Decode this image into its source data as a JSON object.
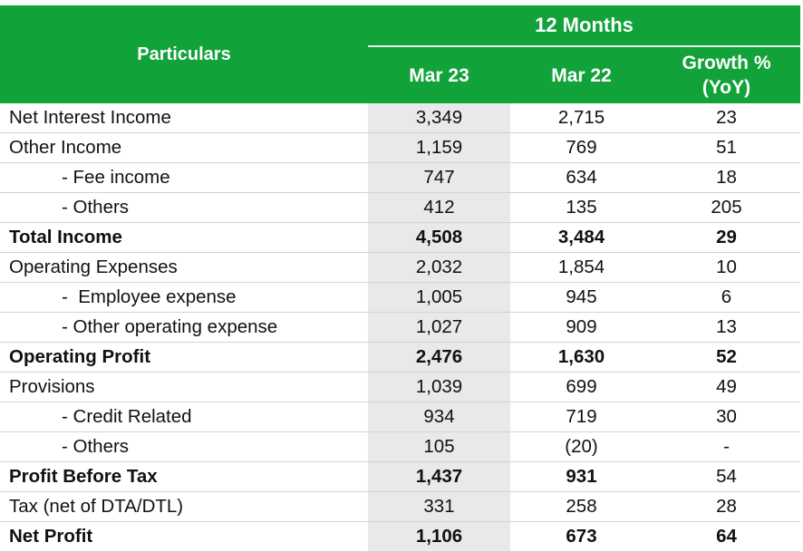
{
  "header": {
    "particulars": "Particulars",
    "group": "12 Months",
    "col1": "Mar 23",
    "col2": "Mar 22",
    "col3_line1": "Growth %",
    "col3_line2": "(YoY)"
  },
  "colors": {
    "header_bg": "#11a23a",
    "highlight_col": "#e9e9e9"
  },
  "rows": [
    {
      "label": "Net Interest Income",
      "mar23": "3,349",
      "mar22": "2,715",
      "growth": "23"
    },
    {
      "label": "Other Income",
      "mar23": "1,159",
      "mar22": "769",
      "growth": "51"
    },
    {
      "label": "- Fee income",
      "mar23": "747",
      "mar22": "634",
      "growth": "18"
    },
    {
      "label": "- Others",
      "mar23": "412",
      "mar22": "135",
      "growth": "205"
    },
    {
      "label": "Total Income",
      "mar23": "4,508",
      "mar22": "3,484",
      "growth": "29"
    },
    {
      "label": "Operating Expenses",
      "mar23": "2,032",
      "mar22": "1,854",
      "growth": "10"
    },
    {
      "label": "-  Employee expense",
      "mar23": "1,005",
      "mar22": "945",
      "growth": "6"
    },
    {
      "label": "- Other operating expense",
      "mar23": "1,027",
      "mar22": "909",
      "growth": "13"
    },
    {
      "label": "Operating Profit",
      "mar23": "2,476",
      "mar22": "1,630",
      "growth": "52"
    },
    {
      "label": "Provisions",
      "mar23": "1,039",
      "mar22": "699",
      "growth": "49"
    },
    {
      "label": "- Credit Related",
      "mar23": "934",
      "mar22": "719",
      "growth": "30"
    },
    {
      "label": "- Others",
      "mar23": "105",
      "mar22": "(20)",
      "growth": "-"
    },
    {
      "label": "Profit Before Tax",
      "mar23": "1,437",
      "mar22": "931",
      "growth": "54"
    },
    {
      "label": "Tax (net of DTA/DTL)",
      "mar23": "331",
      "mar22": "258",
      "growth": "28"
    },
    {
      "label": "Net Profit",
      "mar23": "1,106",
      "mar22": "673",
      "growth": "64"
    }
  ]
}
